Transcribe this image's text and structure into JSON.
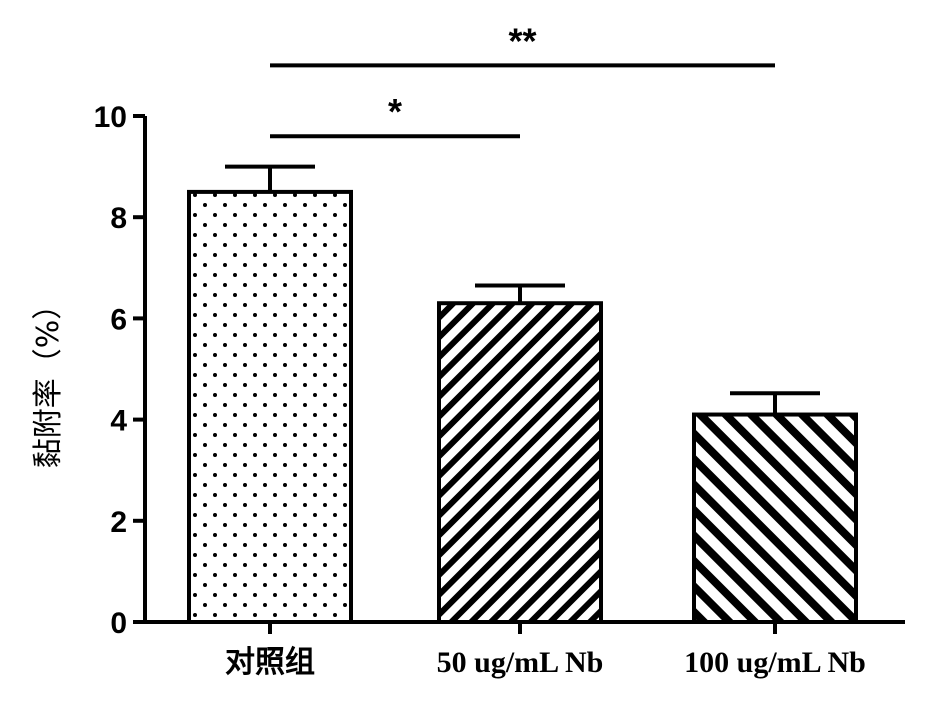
{
  "chart_data": {
    "type": "bar",
    "title": "",
    "xlabel": "",
    "ylabel": "黏附率（%）",
    "categories": [
      "对照组",
      "50 ug/mL Nb",
      "100 ug/mL Nb"
    ],
    "values": [
      8.5,
      6.3,
      4.1
    ],
    "error": [
      0.5,
      0.35,
      0.42
    ],
    "ylim": [
      0,
      10
    ],
    "yticks": [
      0,
      2,
      4,
      6,
      8,
      10
    ],
    "fill_patterns": [
      "dots",
      "diagonal-lines-dense",
      "diagonal-lines"
    ],
    "grid": false,
    "legend": "none",
    "significance": [
      {
        "from": 0,
        "to": 1,
        "label": "*",
        "y": 9.6
      },
      {
        "from": 0,
        "to": 2,
        "label": "**",
        "y": 11.0
      }
    ]
  }
}
